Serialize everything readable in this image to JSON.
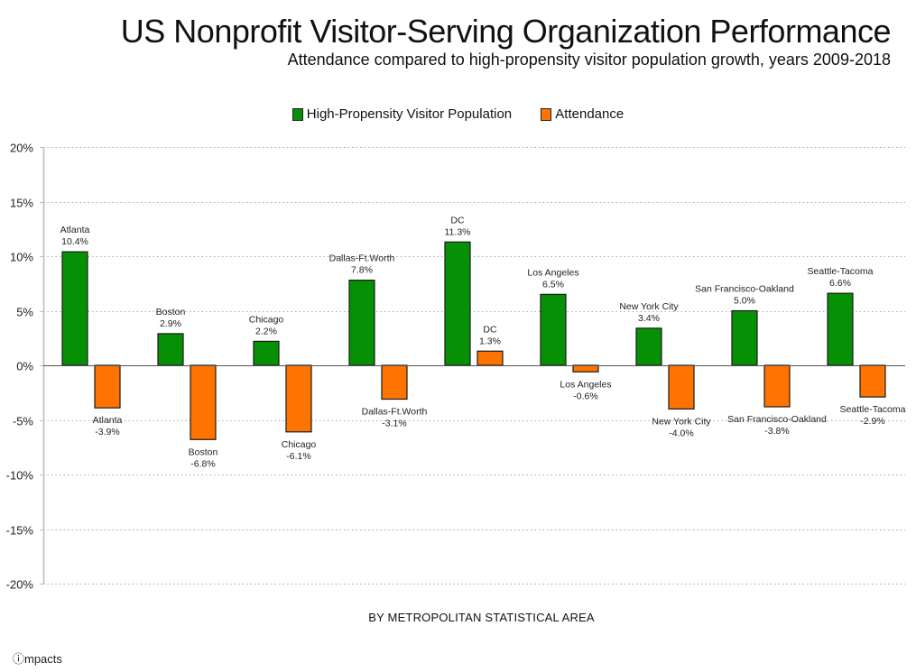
{
  "chart_data": {
    "type": "bar",
    "title": "US Nonprofit Visitor-Serving Organization Performance",
    "subtitle": "Attendance compared to high-propensity visitor population growth, years 2009-2018",
    "xlabel": "BY METROPOLITAN STATISTICAL AREA",
    "ylabel": "",
    "ylim": [
      -20,
      20
    ],
    "yticks": [
      20,
      15,
      10,
      5,
      0,
      -5,
      -10,
      -15,
      -20
    ],
    "ytick_labels": [
      "20%",
      "15%",
      "10%",
      "5%",
      "0%",
      "-5%",
      "-10%",
      "-15%",
      "-20%"
    ],
    "grid": true,
    "legend_position": "top-center",
    "categories": [
      "Atlanta",
      "Boston",
      "Chicago",
      "Dallas-Ft.Worth",
      "DC",
      "Los Angeles",
      "New York City",
      "San Francisco-Oakland",
      "Seattle-Tacoma"
    ],
    "series": [
      {
        "name": "High-Propensity Visitor Population",
        "color": "#069006",
        "values": [
          10.4,
          2.9,
          2.2,
          7.8,
          11.3,
          6.5,
          3.4,
          5.0,
          6.6
        ],
        "labels": [
          "10.4%",
          "2.9%",
          "2.2%",
          "7.8%",
          "11.3%",
          "6.5%",
          "3.4%",
          "5.0%",
          "6.6%"
        ]
      },
      {
        "name": "Attendance",
        "color": "#ff7300",
        "values": [
          -3.9,
          -6.8,
          -6.1,
          -3.1,
          1.3,
          -0.6,
          -4.0,
          -3.8,
          -2.9
        ],
        "labels": [
          "-3.9%",
          "-6.8%",
          "-6.1%",
          "-3.1%",
          "1.3%",
          "-0.6%",
          "-4.0%",
          "-3.8%",
          "-2.9%"
        ]
      }
    ]
  },
  "footer": {
    "logo_text": "ⓘmpacts"
  }
}
